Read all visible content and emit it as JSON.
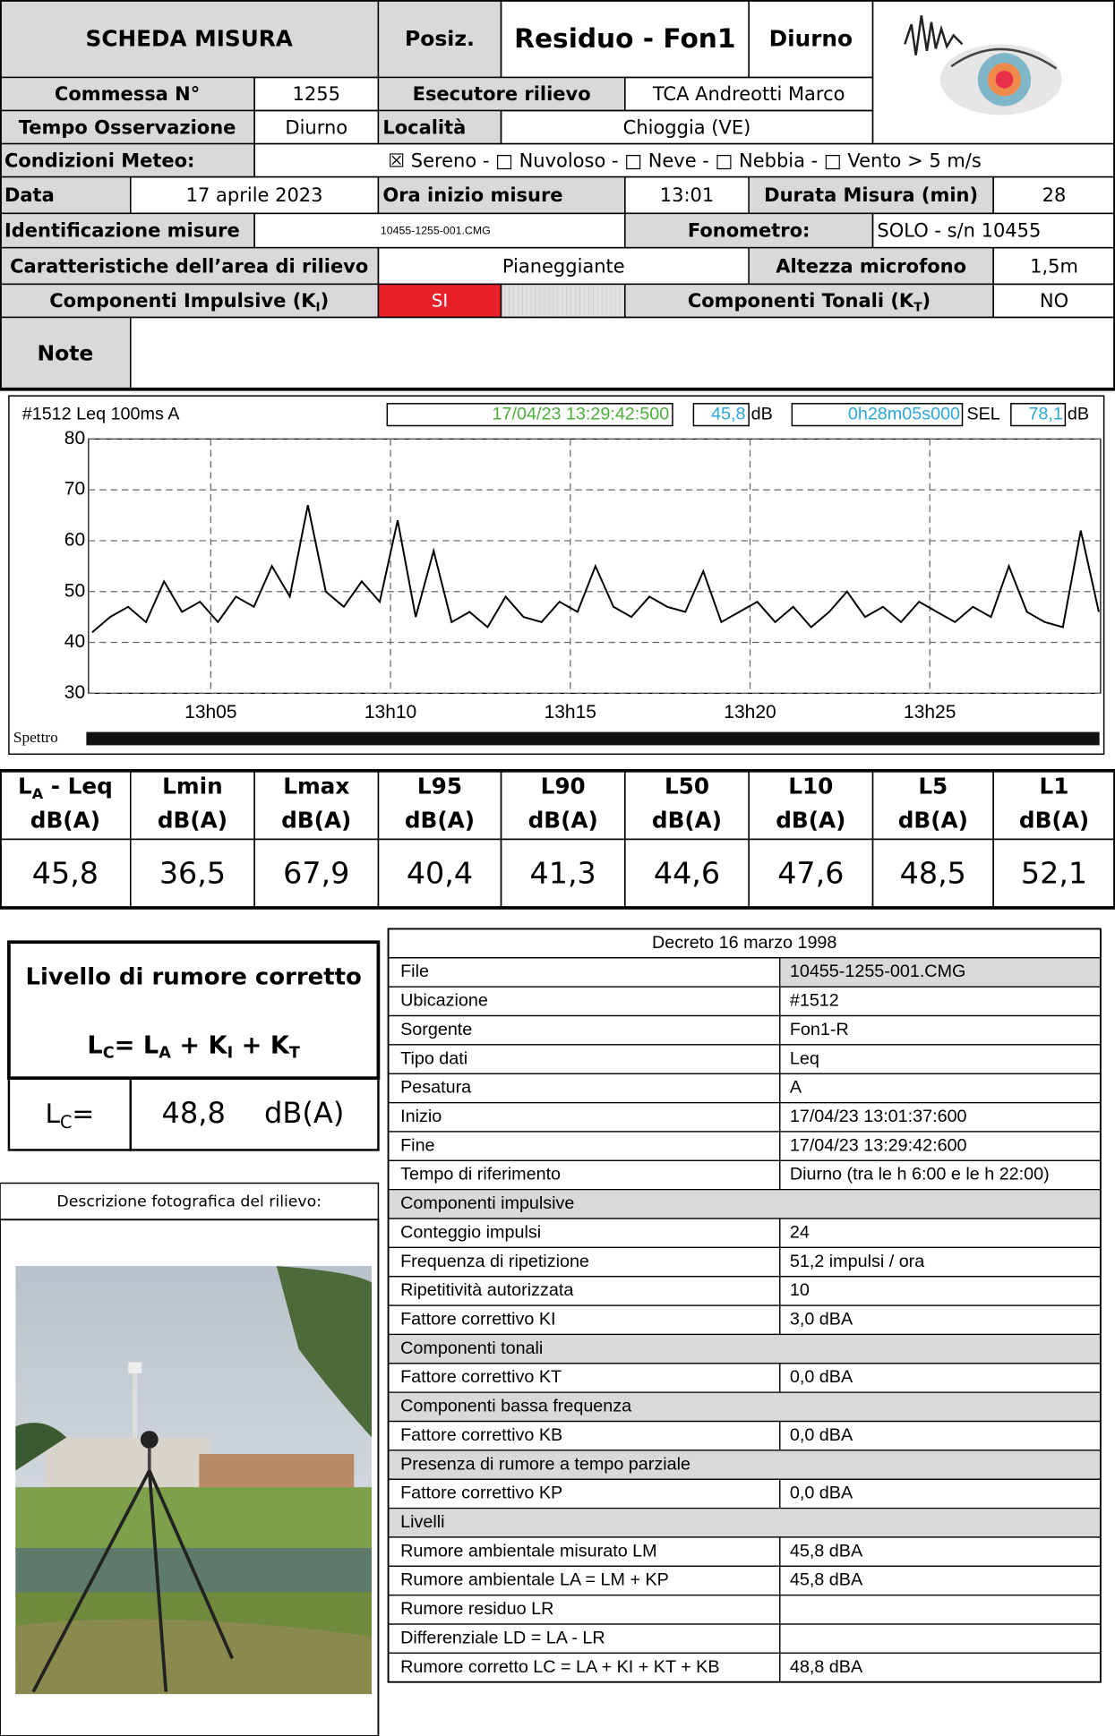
{
  "header": {
    "title": "SCHEDA MISURA",
    "posiz_label": "Posiz.",
    "posiz": "Residuo - Fon1",
    "period": "Diurno"
  },
  "info": {
    "commessa_label": "Commessa N°",
    "commessa": "1255",
    "esecutore_label": "Esecutore rilievo",
    "esecutore": "TCA Andreotti Marco",
    "tempo_label": "Tempo Osservazione",
    "tempo": "Diurno",
    "localita_label": "Località",
    "localita": "Chioggia (VE)",
    "meteo_label": "Condizioni Meteo:",
    "meteo": "☒ Sereno - □ Nuvoloso - □ Neve - □ Nebbia - □ Vento > 5 m/s",
    "data_label": "Data",
    "data": "17 aprile 2023",
    "ora_label": "Ora inizio misure",
    "ora": "13:01",
    "durata_label": "Durata Misura (min)",
    "durata": "28",
    "ident_label": "Identificazione misure",
    "ident": "10455-1255-001.CMG",
    "fonometro_label": "Fonometro:",
    "fonometro": "SOLO - s/n  10455",
    "area_label": "Caratteristiche dell’area di rilievo",
    "area": "Pianeggiante",
    "altezza_label": "Altezza microfono",
    "altezza": "1,5m",
    "impulsive_label": [
      "Componenti Impulsive (K",
      "I",
      ")"
    ],
    "impulsive": "SI",
    "tonali_label": [
      "Componenti Tonali (K",
      "T",
      ")"
    ],
    "tonali": "NO",
    "note_label": "Note"
  },
  "meter": {
    "header": "#1512   Leq 100ms  A",
    "cursor_time": "17/04/23 13:29:42:500",
    "cursor_level": "45,8",
    "unit": "dB",
    "duration": "0h28m05s000",
    "sel_label": "SEL",
    "sel": "78,1",
    "sel_unit": "dB",
    "spectrum_label": "Spettro"
  },
  "chart_data": {
    "type": "line",
    "color": "#000000",
    "x": [
      1.7,
      2.2,
      2.7,
      3.2,
      3.7,
      4.2,
      4.7,
      5.2,
      5.7,
      6.2,
      6.7,
      7.2,
      7.7,
      8.2,
      8.7,
      9.2,
      9.7,
      10.2,
      10.7,
      11.2,
      11.7,
      12.2,
      12.7,
      13.2,
      13.7,
      14.2,
      14.7,
      15.2,
      15.7,
      16.2,
      16.7,
      17.2,
      17.7,
      18.2,
      18.7,
      19.2,
      19.7,
      20.2,
      20.7,
      21.2,
      21.7,
      22.2,
      22.7,
      23.2,
      23.7,
      24.2,
      24.7,
      25.2,
      25.7,
      26.2,
      26.7,
      27.2,
      27.7,
      28.2,
      28.7,
      29.2,
      29.7
    ],
    "values": [
      42,
      45,
      47,
      44,
      52,
      46,
      48,
      44,
      49,
      47,
      55,
      49,
      67,
      50,
      47,
      52,
      48,
      64,
      45,
      58,
      44,
      46,
      43,
      49,
      45,
      44,
      48,
      46,
      55,
      47,
      45,
      49,
      47,
      46,
      54,
      44,
      46,
      48,
      44,
      47,
      43,
      46,
      50,
      45,
      47,
      44,
      48,
      46,
      44,
      47,
      45,
      55,
      46,
      44,
      43,
      62,
      46
    ],
    "xlim": [
      1.6,
      29.75
    ],
    "ylim": [
      30,
      80
    ],
    "xticks": [
      {
        "value": 5,
        "label": "13h05"
      },
      {
        "value": 10,
        "label": "13h10"
      },
      {
        "value": 15,
        "label": "13h15"
      },
      {
        "value": 20,
        "label": "13h20"
      },
      {
        "value": 25,
        "label": "13h25"
      }
    ],
    "yticks": [
      30,
      40,
      50,
      60,
      70,
      80
    ],
    "grid": true
  },
  "levels": {
    "headers": [
      {
        "name": [
          "L",
          "A",
          " - Leq"
        ],
        "unit": "dB(A)"
      },
      {
        "name": [
          "Lmin"
        ],
        "unit": "dB(A)"
      },
      {
        "name": [
          "Lmax"
        ],
        "unit": "dB(A)"
      },
      {
        "name": [
          "L95"
        ],
        "unit": "dB(A)"
      },
      {
        "name": [
          "L90"
        ],
        "unit": "dB(A)"
      },
      {
        "name": [
          "L50"
        ],
        "unit": "dB(A)"
      },
      {
        "name": [
          "L10"
        ],
        "unit": "dB(A)"
      },
      {
        "name": [
          "L5"
        ],
        "unit": "dB(A)"
      },
      {
        "name": [
          "L1"
        ],
        "unit": "dB(A)"
      }
    ],
    "values": [
      "45,8",
      "36,5",
      "67,9",
      "40,4",
      "41,3",
      "44,6",
      "47,6",
      "48,5",
      "52,1"
    ]
  },
  "corrected": {
    "title": "Livello di rumore corretto",
    "formula": [
      "L",
      "C",
      "= L",
      "A",
      " + K",
      "I",
      " + K",
      "T"
    ],
    "lc_label": [
      "L",
      "C",
      "="
    ],
    "lc_value": "48,8",
    "lc_unit": "dB(A)"
  },
  "photo": {
    "caption": "Descrizione fotografica del rilievo:"
  },
  "decree": {
    "title": "Decreto 16 marzo 1998",
    "rows": [
      {
        "label": "File",
        "value": "10455-1255-001.CMG"
      },
      {
        "label": "Ubicazione",
        "value": "#1512"
      },
      {
        "label": "Sorgente",
        "value": "Fon1-R"
      },
      {
        "label": "Tipo dati",
        "value": "Leq"
      },
      {
        "label": "Pesatura",
        "value": "A"
      },
      {
        "label": "Inizio",
        "value": "17/04/23 13:01:37:600"
      },
      {
        "label": "Fine",
        "value": "17/04/23 13:29:42:600"
      },
      {
        "label": "Tempo di riferimento",
        "value": "Diurno (tra le h 6:00 e le h 22:00)"
      },
      {
        "section": "Componenti impulsive"
      },
      {
        "label": "Conteggio impulsi",
        "value": "24"
      },
      {
        "label": "Frequenza di ripetizione",
        "value": "51,2 impulsi / ora"
      },
      {
        "label": "Ripetitività autorizzata",
        "value": "10"
      },
      {
        "label": "Fattore correttivo KI",
        "value": "3,0 dBA"
      },
      {
        "section": "Componenti tonali"
      },
      {
        "label": "Fattore correttivo KT",
        "value": "0,0 dBA"
      },
      {
        "section": "Componenti bassa frequenza"
      },
      {
        "label": "Fattore correttivo KB",
        "value": "0,0 dBA"
      },
      {
        "section": "Presenza di rumore a tempo parziale"
      },
      {
        "label": "Fattore correttivo KP",
        "value": "0,0 dBA"
      },
      {
        "section": "Livelli"
      },
      {
        "label": "Rumore ambientale misurato LM",
        "value": "45,8 dBA"
      },
      {
        "label": "Rumore ambientale LA = LM + KP",
        "value": "45,8 dBA"
      },
      {
        "label": "Rumore residuo LR"
      },
      {
        "label": "Differenziale  LD = LA - LR"
      },
      {
        "label": "Rumore corretto  LC = LA + KI + KT + KB",
        "value": "48,8 dBA"
      }
    ]
  }
}
